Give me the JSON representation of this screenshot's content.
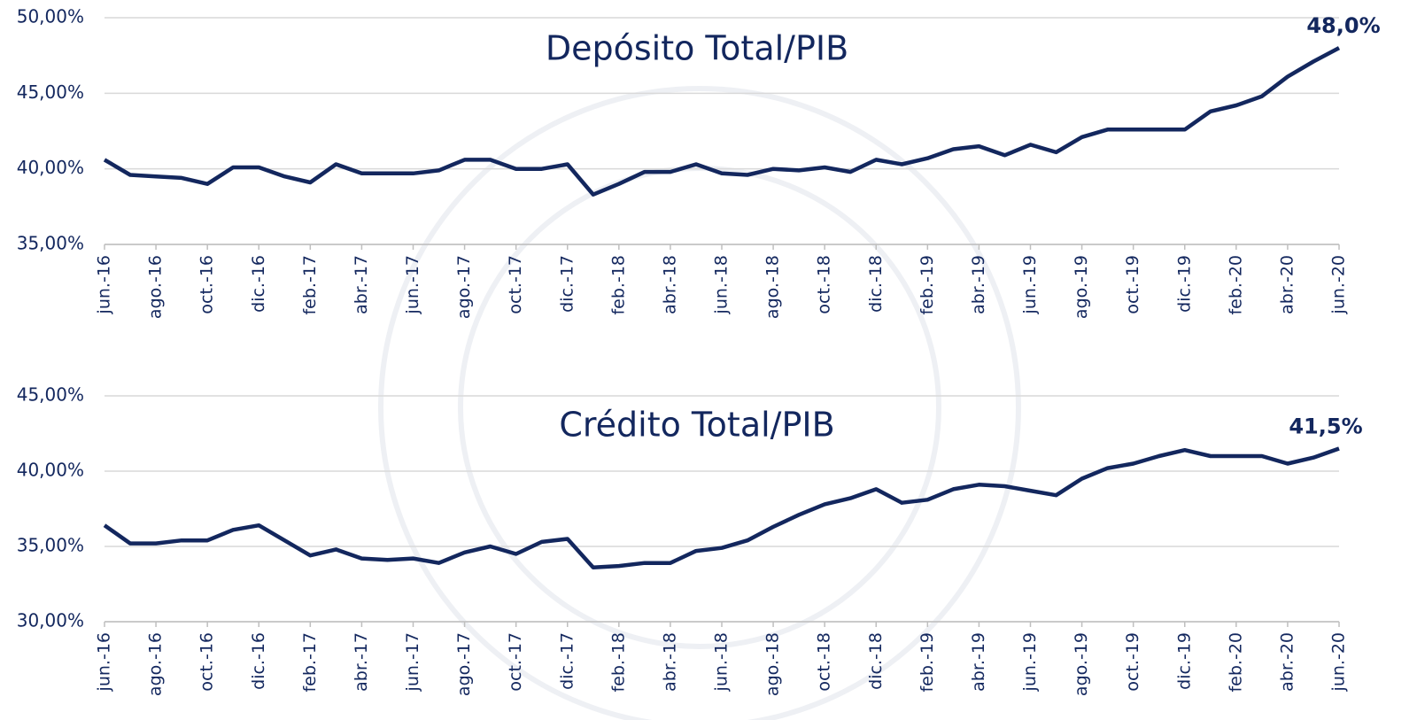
{
  "chart_data": [
    {
      "type": "line",
      "title": "Depósito Total/PIB",
      "annotation": "48,0%",
      "color": "#13275e",
      "grid": true,
      "categories": [
        "jun.-16",
        null,
        "ago.-16",
        null,
        "oct.-16",
        null,
        "dic.-16",
        null,
        "feb.-17",
        null,
        "abr.-17",
        null,
        "jun.-17",
        null,
        "ago.-17",
        null,
        "oct.-17",
        null,
        "dic.-17",
        null,
        "feb.-18",
        null,
        "abr.-18",
        null,
        "jun.-18",
        null,
        "ago.-18",
        null,
        "oct.-18",
        null,
        "dic.-18",
        null,
        "feb.-19",
        null,
        "abr.-19",
        null,
        "jun.-19",
        null,
        "ago.-19",
        null,
        "oct.-19",
        null,
        "dic.-19",
        null,
        "feb.-20",
        null,
        "abr.-20",
        null,
        "jun.-20"
      ],
      "values": [
        40.6,
        39.6,
        39.5,
        39.4,
        39.0,
        40.1,
        40.1,
        39.5,
        39.1,
        40.3,
        39.7,
        39.7,
        39.7,
        39.9,
        40.6,
        40.6,
        40.0,
        40.0,
        40.3,
        38.3,
        39.0,
        39.8,
        39.8,
        40.3,
        39.7,
        39.6,
        40.0,
        39.9,
        40.1,
        39.8,
        40.6,
        40.3,
        40.7,
        41.3,
        41.5,
        40.9,
        41.6,
        41.1,
        42.1,
        42.6,
        42.6,
        42.6,
        42.6,
        43.8,
        44.2,
        44.8,
        46.1,
        47.1,
        48.0
      ],
      "ylim": [
        35,
        50
      ],
      "yticks": [
        {
          "value": 35,
          "label": "35,00%"
        },
        {
          "value": 40,
          "label": "40,00%"
        },
        {
          "value": 45,
          "label": "45,00%"
        },
        {
          "value": 50,
          "label": "50,00%"
        }
      ]
    },
    {
      "type": "line",
      "title": "Crédito Total/PIB",
      "annotation": "41,5%",
      "color": "#13275e",
      "grid": true,
      "categories": [
        "jun.-16",
        null,
        "ago.-16",
        null,
        "oct.-16",
        null,
        "dic.-16",
        null,
        "feb.-17",
        null,
        "abr.-17",
        null,
        "jun.-17",
        null,
        "ago.-17",
        null,
        "oct.-17",
        null,
        "dic.-17",
        null,
        "feb.-18",
        null,
        "abr.-18",
        null,
        "jun.-18",
        null,
        "ago.-18",
        null,
        "oct.-18",
        null,
        "dic.-18",
        null,
        "feb.-19",
        null,
        "abr.-19",
        null,
        "jun.-19",
        null,
        "ago.-19",
        null,
        "oct.-19",
        null,
        "dic.-19",
        null,
        "feb.-20",
        null,
        "abr.-20",
        null,
        "jun.-20"
      ],
      "values": [
        36.4,
        35.2,
        35.2,
        35.4,
        35.4,
        36.1,
        36.4,
        35.4,
        34.4,
        34.8,
        34.2,
        34.1,
        34.2,
        33.9,
        34.6,
        35.0,
        34.5,
        35.3,
        35.5,
        33.6,
        33.7,
        33.9,
        33.9,
        34.7,
        34.9,
        35.4,
        36.3,
        37.1,
        37.8,
        38.2,
        38.8,
        37.9,
        38.1,
        38.8,
        39.1,
        39.0,
        38.7,
        38.4,
        39.5,
        40.2,
        40.5,
        41.0,
        41.4,
        41.0,
        41.0,
        41.0,
        40.5,
        40.9,
        41.5
      ],
      "ylim": [
        30,
        45
      ],
      "yticks": [
        {
          "value": 30,
          "label": "30,00%"
        },
        {
          "value": 35,
          "label": "35,00%"
        },
        {
          "value": 40,
          "label": "40,00%"
        },
        {
          "value": 45,
          "label": "45,00%"
        }
      ]
    }
  ]
}
